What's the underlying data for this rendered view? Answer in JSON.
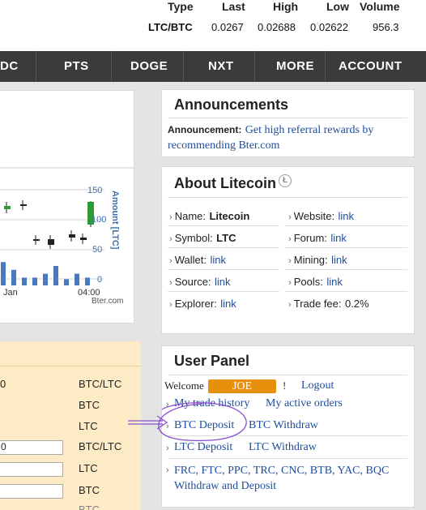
{
  "market": {
    "headers": [
      "Type",
      "Last",
      "High",
      "Low",
      "Volume"
    ],
    "row": [
      "LTC/BTC",
      "0.0267",
      "0.02688",
      "0.02622",
      "956.3"
    ]
  },
  "nav": {
    "items": [
      "DC",
      "PTS",
      "DOGE",
      "NXT",
      "MORE",
      "ACCOUNT"
    ]
  },
  "chart": {
    "y_right_ticks": [
      "150",
      "100",
      "50",
      "0"
    ],
    "y_right_label": "Amount [LTC]",
    "x_ticks": [
      "Jan",
      "04:00"
    ],
    "credit": "Bter.com"
  },
  "chart_data": {
    "type": "bar",
    "categories": [
      "",
      "",
      "",
      "",
      "",
      "",
      "",
      "",
      ""
    ],
    "series": [
      {
        "values": [
          30,
          20,
          10,
          10,
          15,
          25,
          8,
          15,
          10
        ]
      }
    ],
    "ylim": [
      0,
      150
    ]
  },
  "form": {
    "rows": [
      "BTC/LTC",
      "BTC",
      "LTC",
      "BTC/LTC",
      "LTC",
      "BTC"
    ],
    "first_value": "0",
    "fourth_value": "0"
  },
  "announcements": {
    "title": "Announcements",
    "prefix": "Announcement:",
    "link": "Get high referral rewards by recommending Bter.com"
  },
  "about": {
    "title": "About Litecoin",
    "items": [
      {
        "label": "Name:",
        "value": "Litecoin",
        "type": "text"
      },
      {
        "label": "Website:",
        "value": "link",
        "type": "link"
      },
      {
        "label": "Symbol:",
        "value": "LTC",
        "type": "text"
      },
      {
        "label": "Forum:",
        "value": "link",
        "type": "link"
      },
      {
        "label": "Wallet:",
        "value": "link",
        "type": "link"
      },
      {
        "label": "Mining:",
        "value": "link",
        "type": "link"
      },
      {
        "label": "Source:",
        "value": "link",
        "type": "link"
      },
      {
        "label": "Pools:",
        "value": "link",
        "type": "link"
      },
      {
        "label": "Explorer:",
        "value": "link",
        "type": "link"
      },
      {
        "label": "Trade fee:",
        "value": "0.2%",
        "type": "plain"
      }
    ]
  },
  "user_panel": {
    "title": "User Panel",
    "welcome": "Welcome",
    "username": "JOE",
    "exclaim": "!",
    "logout": "Logout",
    "my_trade_history": "My trade history",
    "my_active_orders": "My active orders",
    "btc_deposit": "BTC Deposit",
    "btc_withdraw": "BTC Withdraw",
    "ltc_deposit": "LTC Deposit",
    "ltc_withdraw": "LTC Withdraw",
    "others_line1": "FRC, FTC, PPC, TRC, CNC, BTB, YAC, BQC",
    "others_line2": "Withdraw and Deposit",
    "username_bg": "#e8900c",
    "annotation_color": "#8a4fd0"
  }
}
